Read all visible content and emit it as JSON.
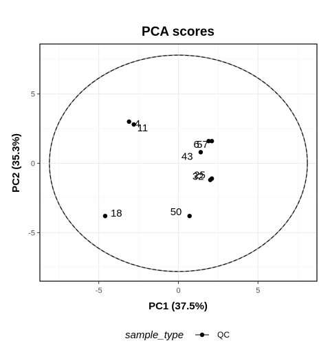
{
  "chart_data": {
    "type": "scatter",
    "title": "PCA scores",
    "xlabel": "PC1 (37.5%)",
    "ylabel": "PC2 (35.3%)",
    "xlim": [
      -8.7,
      8.7
    ],
    "ylim": [
      -8.5,
      8.6
    ],
    "xticks": [
      -5,
      0,
      5
    ],
    "yticks": [
      -5,
      0,
      5
    ],
    "x_tick_labels": [
      "-5",
      "0",
      "5"
    ],
    "y_tick_labels": [
      "-5",
      "0",
      "5"
    ],
    "grid": true,
    "legend_position": "bottom",
    "legend_title": "sample_type",
    "series": [
      {
        "name": "QC",
        "color": "#000000",
        "points": [
          {
            "x": -3.1,
            "y": 3.0,
            "label": "4"
          },
          {
            "x": -2.8,
            "y": 2.8,
            "label": "11"
          },
          {
            "x": 1.9,
            "y": 1.6,
            "label": "6"
          },
          {
            "x": 2.1,
            "y": 1.6,
            "label": "57"
          },
          {
            "x": 1.4,
            "y": 0.8,
            "label": "43"
          },
          {
            "x": 2.1,
            "y": -1.1,
            "label": "25"
          },
          {
            "x": 2.0,
            "y": -1.2,
            "label": "32"
          },
          {
            "x": -4.6,
            "y": -3.8,
            "label": "18"
          },
          {
            "x": 0.7,
            "y": -3.8,
            "label": "50"
          }
        ]
      }
    ],
    "ellipse": {
      "center": [
        0,
        0
      ],
      "rx": 8.1,
      "ry": 7.8,
      "style": "dashed"
    }
  }
}
